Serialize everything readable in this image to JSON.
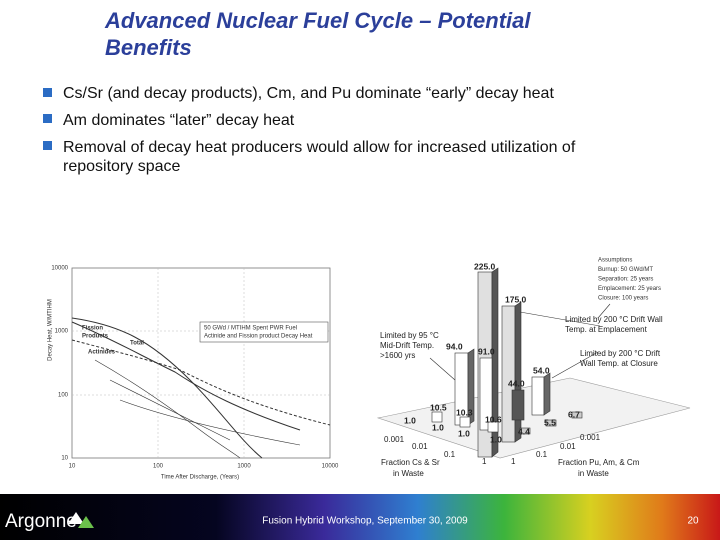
{
  "header": {
    "title_lines": [
      "Advanced Nuclear Fuel Cycle – Potential",
      "Benefits"
    ]
  },
  "bullets": [
    [
      "Cs/Sr (and decay products), Cm, and Pu dominate “early” decay heat"
    ],
    [
      " Am dominates “later” decay heat"
    ],
    [
      "Removal of decay heat producers would allow for increased utilization of",
      "repository space"
    ]
  ],
  "left_figure": {
    "y_axis_label": "Decay Heat, W/MTIHM",
    "x_axis_label": "Time After Discharge, (Years)",
    "x_ticks": [
      "10",
      "100",
      "1000",
      "10000"
    ],
    "y_ticks": [
      "10000",
      "1000",
      "100",
      "10"
    ],
    "legend_lines": [
      "50 GWd / MTIHM Spent PWR Fuel",
      "Actinide and Fission product Decay Heat"
    ],
    "curve_labels": [
      "Fission",
      "Products",
      "Total",
      "Actinides"
    ]
  },
  "right_figure": {
    "assumptions": [
      "Assumptions",
      "Burnup: 50 GWd/MT",
      "Separation: 25 years",
      "Emplacement: 25 years",
      "Closure: 100 years"
    ],
    "annotations": [
      "Limited by 95 °C",
      "Mid-Drift Temp.",
      ">1600 yrs",
      "Limited by 200 °C Drift Wall",
      "Temp. at Emplacement",
      "Limited by 200 °C Drift",
      "Wall Temp. at Closure"
    ],
    "bar_labels": [
      "225.0",
      "175.0",
      "94.0",
      "91.0",
      "54.0",
      "44.0",
      "10.5",
      "10.3",
      "10.6",
      "1.0",
      "1.0",
      "1.0",
      "1.0",
      "4.4",
      "5.5",
      "6.7"
    ],
    "cs_sr_ticks": [
      "0.001",
      "0.01",
      "0.1",
      "1"
    ],
    "actinide_ticks": [
      "1",
      "0.1",
      "0.01",
      "0.001"
    ],
    "cs_sr_axis_label": [
      "Fraction Cs & Sr",
      "in Waste"
    ],
    "actinide_axis_label": [
      "Fraction Pu, Am, & Cm",
      "in Waste"
    ]
  },
  "footer": {
    "logo": "Argonne",
    "event": "Fusion Hybrid Workshop, September 30, 2009",
    "page": "20"
  }
}
